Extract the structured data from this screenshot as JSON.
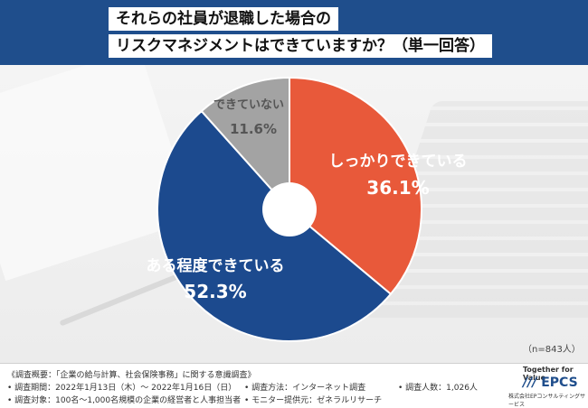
{
  "header": {
    "title_line1": "それらの社員が退職した場合の",
    "title_line2": "リスクマネジメントはできていますか？（単一回答）"
  },
  "chart_data": {
    "type": "pie",
    "donut": true,
    "categories": [
      "しっかりできている",
      "ある程度できている",
      "できていない"
    ],
    "values": [
      36.1,
      52.3,
      11.6
    ],
    "value_labels": [
      "36.1%",
      "52.3%",
      "11.6%"
    ],
    "colors": [
      "#e8593a",
      "#1c4a8e",
      "#a3a3a3"
    ],
    "sample_size": "（n=843人）"
  },
  "footer": {
    "survey_overview": "《調査概要：「企業の給与計算、社会保険事務」に関する意識調査》",
    "period": "• 調査期間：2022年1月13日（木）～ 2022年1月16日（日）",
    "method": "• 調査方法：インターネット調査",
    "count": "• 調査人数：1,026人",
    "target": "• 調査対象：100名～1,000名規模の企業の経営者と人事担当者",
    "provider": "• モニター提供元：ゼネラルリサーチ"
  },
  "logo": {
    "tagline": "Together for Value",
    "name": "EPCS",
    "sub": "株式会社EPコンサルティングサービス"
  }
}
